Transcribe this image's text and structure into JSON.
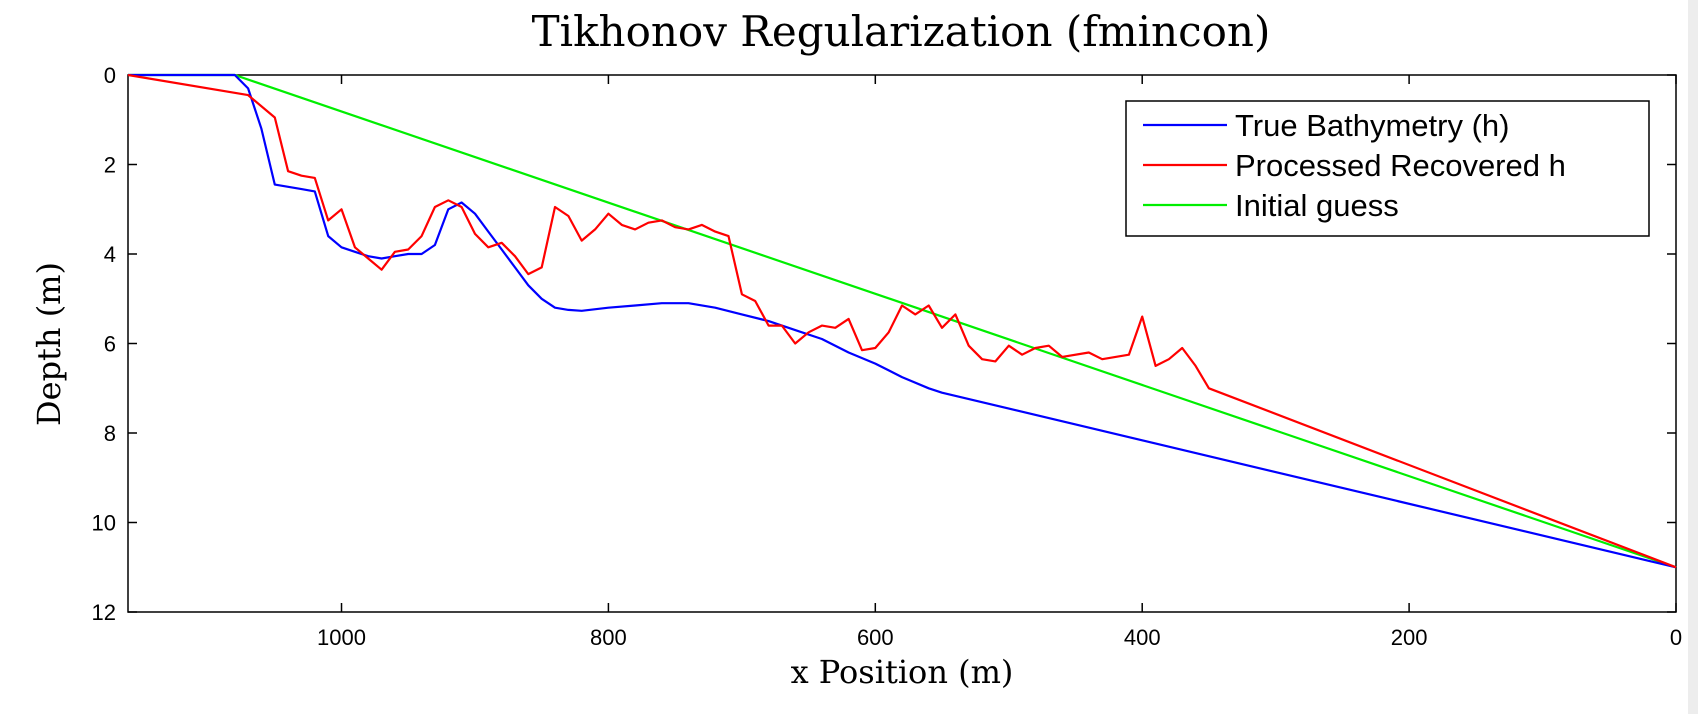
{
  "chart_data": {
    "type": "line",
    "title": "Tikhonov Regularization (fmincon)",
    "xlabel": "x Position (m)",
    "ylabel": "Depth (m)",
    "xlim": [
      1160,
      0
    ],
    "ylim": [
      0,
      12
    ],
    "x_reversed": true,
    "y_reversed": true,
    "x_ticks": [
      1000,
      800,
      600,
      400,
      200,
      0
    ],
    "y_ticks": [
      0,
      2,
      4,
      6,
      8,
      10,
      12
    ],
    "grid": false,
    "legend_position": "top-right",
    "series": [
      {
        "name": "True Bathymetry (h)",
        "color": "#0000ff",
        "points": [
          [
            1160,
            0
          ],
          [
            1080,
            0
          ],
          [
            1070,
            0.3
          ],
          [
            1060,
            1.2
          ],
          [
            1050,
            2.45
          ],
          [
            1030,
            2.55
          ],
          [
            1020,
            2.6
          ],
          [
            1010,
            3.6
          ],
          [
            1000,
            3.85
          ],
          [
            990,
            3.95
          ],
          [
            980,
            4.05
          ],
          [
            970,
            4.1
          ],
          [
            960,
            4.05
          ],
          [
            950,
            4.0
          ],
          [
            940,
            4.0
          ],
          [
            930,
            3.8
          ],
          [
            920,
            3.0
          ],
          [
            910,
            2.85
          ],
          [
            900,
            3.1
          ],
          [
            890,
            3.5
          ],
          [
            880,
            3.9
          ],
          [
            870,
            4.3
          ],
          [
            860,
            4.7
          ],
          [
            850,
            5.0
          ],
          [
            840,
            5.2
          ],
          [
            830,
            5.25
          ],
          [
            820,
            5.27
          ],
          [
            800,
            5.2
          ],
          [
            780,
            5.15
          ],
          [
            760,
            5.1
          ],
          [
            740,
            5.1
          ],
          [
            720,
            5.2
          ],
          [
            700,
            5.35
          ],
          [
            680,
            5.5
          ],
          [
            660,
            5.7
          ],
          [
            640,
            5.9
          ],
          [
            620,
            6.2
          ],
          [
            600,
            6.45
          ],
          [
            580,
            6.75
          ],
          [
            560,
            7.0
          ],
          [
            550,
            7.1
          ],
          [
            0,
            11.0
          ]
        ]
      },
      {
        "name": "Processed Recovered h",
        "color": "#ff0000",
        "points": [
          [
            1160,
            0
          ],
          [
            1070,
            0.45
          ],
          [
            1050,
            0.95
          ],
          [
            1040,
            2.15
          ],
          [
            1030,
            2.25
          ],
          [
            1020,
            2.3
          ],
          [
            1010,
            3.25
          ],
          [
            1000,
            3.0
          ],
          [
            990,
            3.85
          ],
          [
            980,
            4.1
          ],
          [
            970,
            4.35
          ],
          [
            960,
            3.95
          ],
          [
            950,
            3.9
          ],
          [
            940,
            3.6
          ],
          [
            930,
            2.95
          ],
          [
            920,
            2.8
          ],
          [
            910,
            2.95
          ],
          [
            900,
            3.55
          ],
          [
            890,
            3.85
          ],
          [
            880,
            3.75
          ],
          [
            870,
            4.05
          ],
          [
            860,
            4.45
          ],
          [
            850,
            4.3
          ],
          [
            840,
            2.95
          ],
          [
            830,
            3.15
          ],
          [
            820,
            3.7
          ],
          [
            810,
            3.45
          ],
          [
            800,
            3.1
          ],
          [
            790,
            3.35
          ],
          [
            780,
            3.45
          ],
          [
            770,
            3.3
          ],
          [
            760,
            3.25
          ],
          [
            750,
            3.4
          ],
          [
            740,
            3.45
          ],
          [
            730,
            3.35
          ],
          [
            720,
            3.5
          ],
          [
            710,
            3.6
          ],
          [
            700,
            4.9
          ],
          [
            690,
            5.05
          ],
          [
            680,
            5.6
          ],
          [
            670,
            5.6
          ],
          [
            660,
            6.0
          ],
          [
            650,
            5.75
          ],
          [
            640,
            5.6
          ],
          [
            630,
            5.65
          ],
          [
            620,
            5.45
          ],
          [
            610,
            6.15
          ],
          [
            600,
            6.1
          ],
          [
            590,
            5.75
          ],
          [
            580,
            5.15
          ],
          [
            570,
            5.35
          ],
          [
            560,
            5.15
          ],
          [
            550,
            5.65
          ],
          [
            540,
            5.35
          ],
          [
            530,
            6.05
          ],
          [
            520,
            6.35
          ],
          [
            510,
            6.4
          ],
          [
            500,
            6.05
          ],
          [
            490,
            6.25
          ],
          [
            480,
            6.1
          ],
          [
            470,
            6.05
          ],
          [
            460,
            6.3
          ],
          [
            440,
            6.2
          ],
          [
            430,
            6.35
          ],
          [
            410,
            6.25
          ],
          [
            400,
            5.4
          ],
          [
            390,
            6.5
          ],
          [
            380,
            6.35
          ],
          [
            370,
            6.1
          ],
          [
            360,
            6.5
          ],
          [
            350,
            7.0
          ],
          [
            0,
            11.0
          ]
        ]
      },
      {
        "name": "Initial guess",
        "color": "#00ee00",
        "points": [
          [
            1160,
            0
          ],
          [
            1080,
            0
          ],
          [
            0,
            11.0
          ]
        ]
      }
    ]
  }
}
